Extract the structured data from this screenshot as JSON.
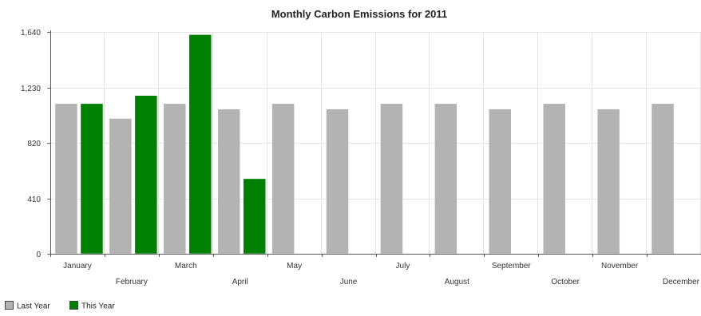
{
  "chart_data": {
    "type": "bar",
    "title": "Monthly Carbon Emissions for 2011",
    "xlabel": "",
    "ylabel": "",
    "categories": [
      "January",
      "February",
      "March",
      "April",
      "May",
      "June",
      "July",
      "August",
      "September",
      "October",
      "November",
      "December"
    ],
    "series": [
      {
        "name": "Last Year",
        "color": "#b3b3b3",
        "values": [
          1110,
          1000,
          1110,
          1070,
          1110,
          1070,
          1110,
          1110,
          1070,
          1110,
          1070,
          1110
        ]
      },
      {
        "name": "This Year",
        "color": "#008000",
        "values": [
          1110,
          1170,
          1620,
          555,
          null,
          null,
          null,
          null,
          null,
          null,
          null,
          null
        ]
      }
    ],
    "ylim": [
      0,
      1640
    ],
    "yticks": [
      0,
      410,
      820,
      1230,
      1640
    ],
    "ytick_labels": [
      "0",
      "410",
      "820",
      "1,230",
      "1,640"
    ],
    "grid": true,
    "legend_position": "bottom-left"
  }
}
